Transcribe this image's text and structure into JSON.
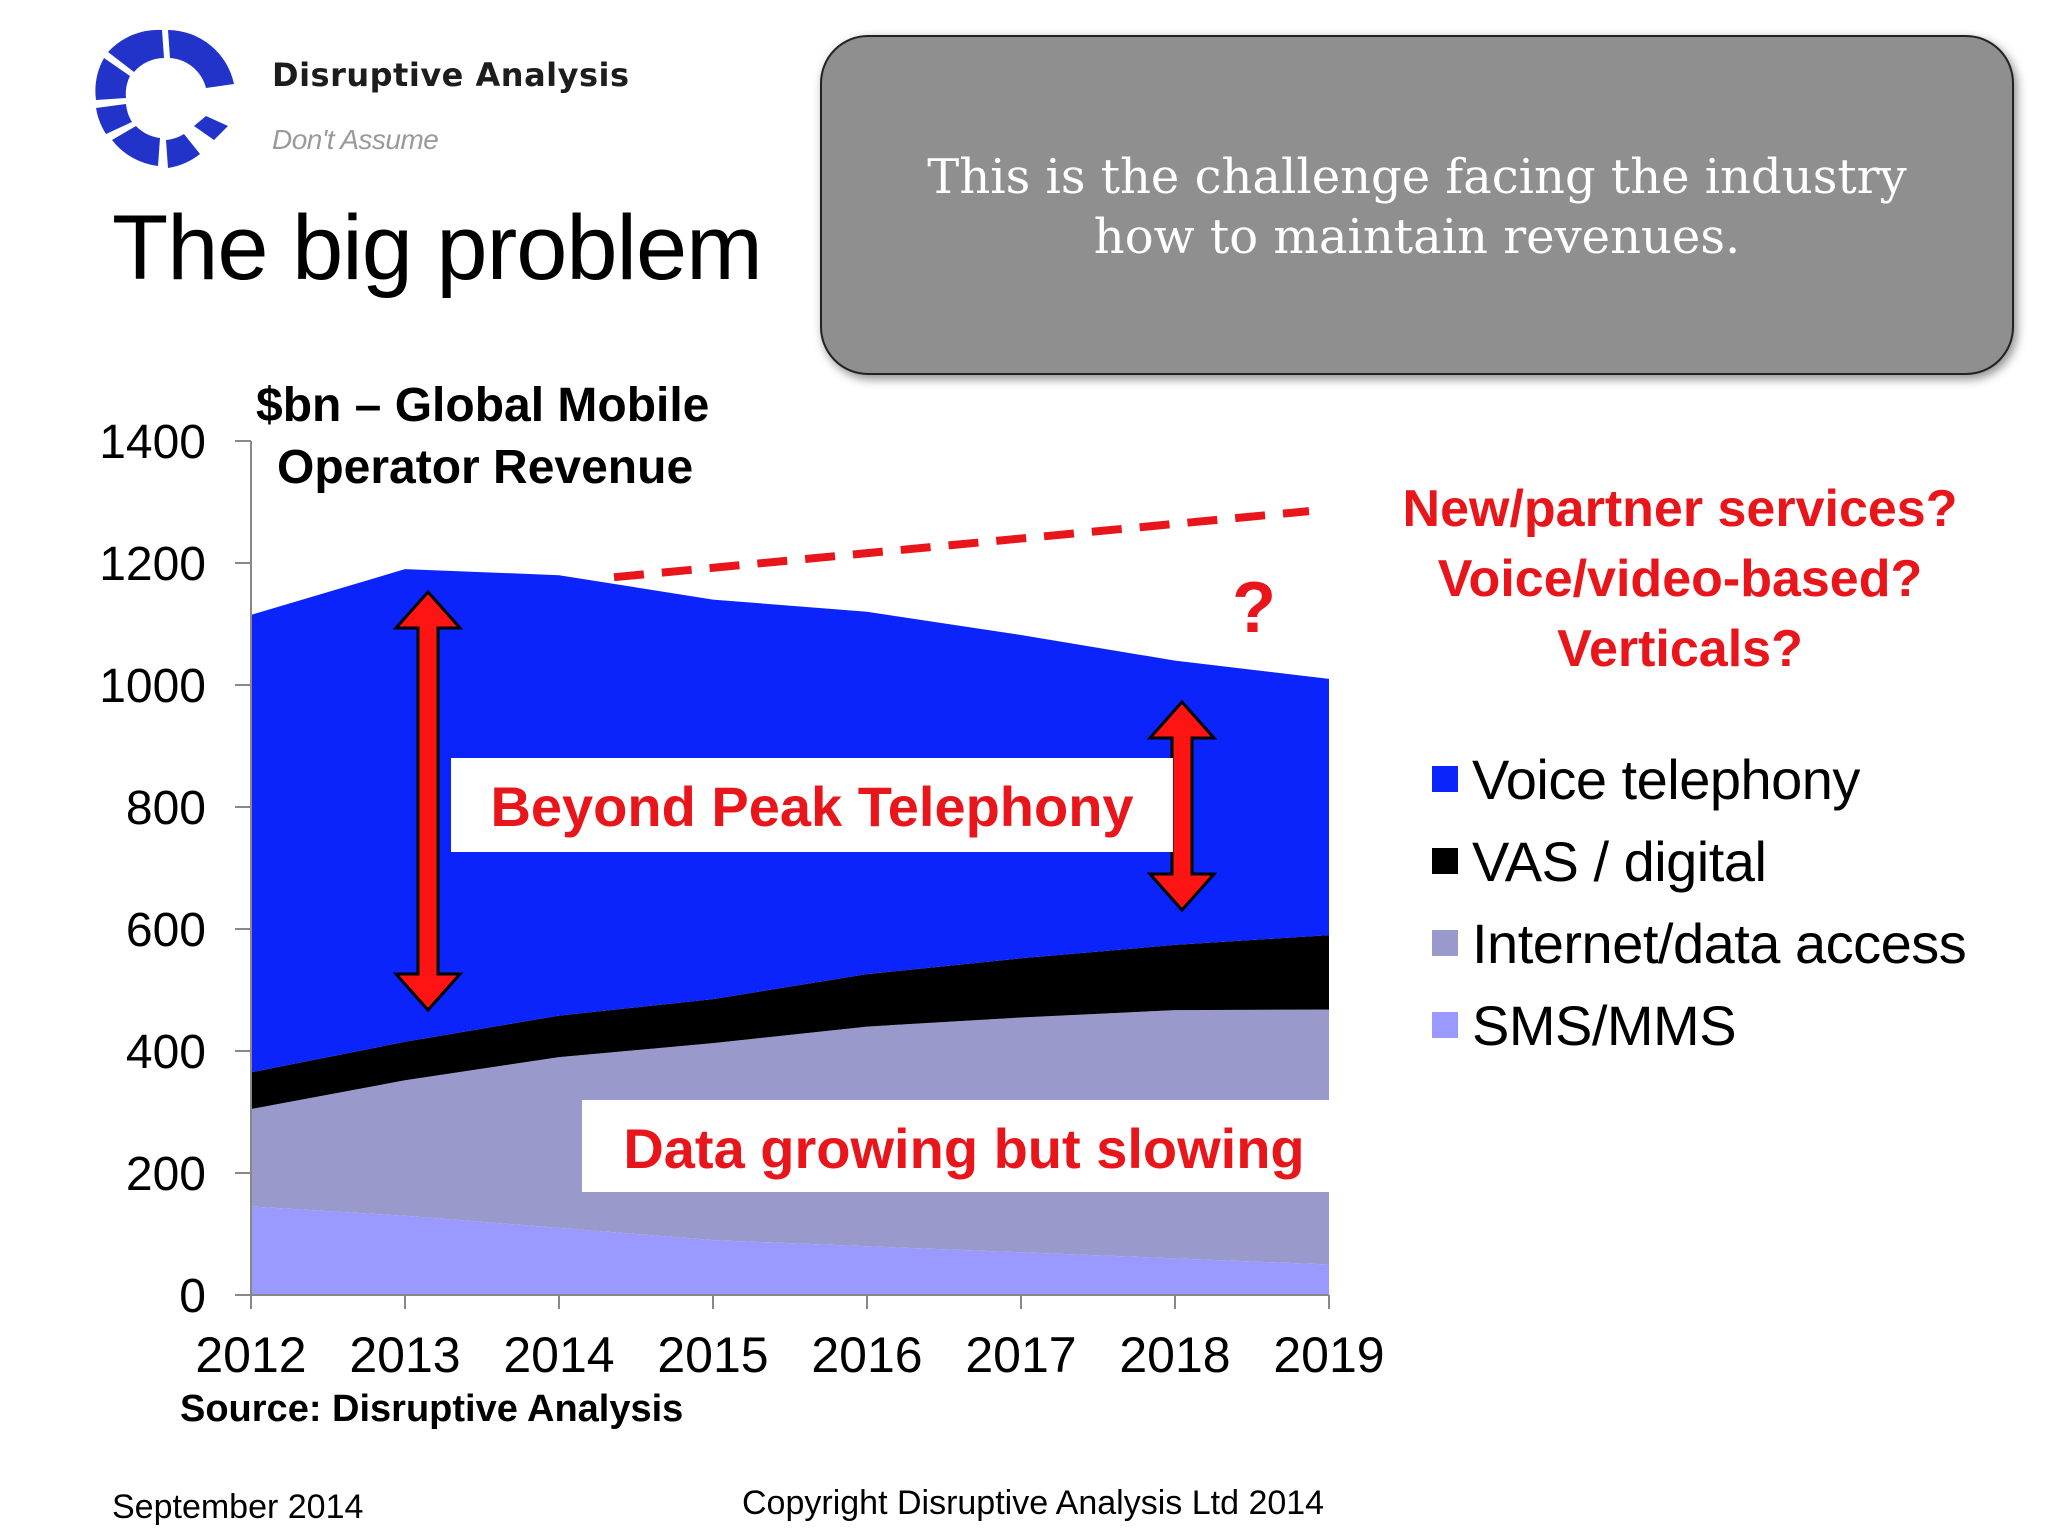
{
  "brand": {
    "name": "Disruptive Analysis",
    "tagline": "Don't Assume"
  },
  "slide": {
    "title": "The big problem",
    "date": "September 2014",
    "copyright": "Copyright Disruptive Analysis Ltd 2014"
  },
  "callout": {
    "text": "This is the challenge facing the industry how to maintain revenues."
  },
  "chart_data": {
    "type": "area",
    "stacked": true,
    "title_lines": [
      "$bn – Global Mobile",
      "Operator Revenue"
    ],
    "source": "Source: Disruptive Analysis",
    "x": [
      "2012",
      "2013",
      "2014",
      "2015",
      "2016",
      "2017",
      "2018",
      "2019"
    ],
    "ylim": [
      0,
      1400
    ],
    "yticks": [
      0,
      200,
      400,
      600,
      800,
      1000,
      1200,
      1400
    ],
    "grid": false,
    "legend_position": "right",
    "series": [
      {
        "name": "SMS/MMS",
        "color": "#9999ff",
        "values": [
          145,
          130,
          110,
          90,
          80,
          70,
          60,
          50
        ]
      },
      {
        "name": "Internet/data access",
        "color": "#9999cc",
        "values": [
          160,
          222,
          280,
          323,
          360,
          385,
          407,
          418
        ]
      },
      {
        "name": "VAS / digital",
        "color": "#000000",
        "values": [
          60,
          63,
          68,
          72,
          86,
          97,
          107,
          122
        ]
      },
      {
        "name": "Voice telephony",
        "color": "#0b24fb",
        "values": [
          750,
          775,
          722,
          655,
          594,
          530,
          466,
          420
        ]
      }
    ],
    "legend_order": [
      "Voice telephony",
      "VAS / digital",
      "Internet/data access",
      "SMS/MMS"
    ],
    "projection_line": {
      "color": "#e8151b",
      "from": [
        "2014",
        1180
      ],
      "to": [
        "2019",
        1285
      ]
    },
    "annotations": {
      "question_mark": "?",
      "beyond_peak": "Beyond Peak Telephony",
      "data_growing": "Data growing but slowing",
      "new_services": [
        "New/partner services?",
        "Voice/video-based?",
        "Verticals?"
      ]
    }
  },
  "colors": {
    "accent_red": "#e8151b",
    "callout_bg": "#8f8f8f",
    "logo_blue": "#2133c9"
  }
}
